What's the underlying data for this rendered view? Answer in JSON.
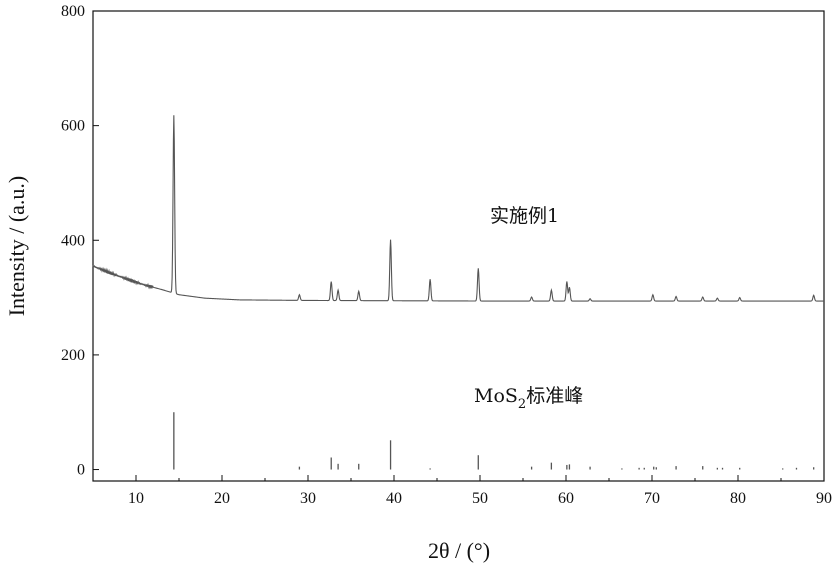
{
  "chart_data": {
    "type": "line",
    "xlabel": "2θ / (°)",
    "ylabel": "Intensity / (a.u.)",
    "xlim": [
      5,
      90
    ],
    "ylim": [
      -20,
      800
    ],
    "x_ticks": [
      10,
      20,
      30,
      40,
      50,
      60,
      70,
      80,
      90
    ],
    "y_ticks": [
      0,
      200,
      400,
      600,
      800
    ],
    "grid": false,
    "annotations": {
      "sample_label": "实施例1",
      "reference_label_prefix": "MoS",
      "reference_label_subscript": "2",
      "reference_label_suffix": "标准峰"
    },
    "series": [
      {
        "type": "line",
        "color": "#555555",
        "baseline": [
          [
            5,
            355
          ],
          [
            7,
            343
          ],
          [
            9,
            332
          ],
          [
            11,
            322
          ],
          [
            13,
            314
          ],
          [
            15,
            305
          ],
          [
            18,
            299
          ],
          [
            22,
            296
          ],
          [
            30,
            295
          ],
          [
            50,
            294
          ],
          [
            70,
            294
          ],
          [
            90,
            294
          ]
        ],
        "peaks": [
          {
            "x": 14.4,
            "y": 618
          },
          {
            "x": 29.0,
            "y": 305
          },
          {
            "x": 32.7,
            "y": 328
          },
          {
            "x": 33.5,
            "y": 313
          },
          {
            "x": 35.9,
            "y": 311
          },
          {
            "x": 39.6,
            "y": 401
          },
          {
            "x": 44.2,
            "y": 332
          },
          {
            "x": 49.8,
            "y": 351
          },
          {
            "x": 56.0,
            "y": 301
          },
          {
            "x": 58.3,
            "y": 313
          },
          {
            "x": 60.1,
            "y": 328
          },
          {
            "x": 60.4,
            "y": 318
          },
          {
            "x": 62.8,
            "y": 298
          },
          {
            "x": 70.1,
            "y": 305
          },
          {
            "x": 72.8,
            "y": 302
          },
          {
            "x": 75.9,
            "y": 301
          },
          {
            "x": 77.6,
            "y": 299
          },
          {
            "x": 80.2,
            "y": 300
          },
          {
            "x": 88.8,
            "y": 304
          }
        ]
      },
      {
        "type": "stick",
        "color": "#555555",
        "sticks": [
          {
            "x": 14.4,
            "y": 100
          },
          {
            "x": 29.0,
            "y": 5
          },
          {
            "x": 32.7,
            "y": 21
          },
          {
            "x": 33.5,
            "y": 10
          },
          {
            "x": 35.9,
            "y": 10
          },
          {
            "x": 39.6,
            "y": 51
          },
          {
            "x": 44.2,
            "y": 2
          },
          {
            "x": 49.8,
            "y": 25
          },
          {
            "x": 56.0,
            "y": 5
          },
          {
            "x": 58.3,
            "y": 12
          },
          {
            "x": 60.1,
            "y": 8
          },
          {
            "x": 60.4,
            "y": 9
          },
          {
            "x": 62.8,
            "y": 5
          },
          {
            "x": 66.5,
            "y": 2
          },
          {
            "x": 68.5,
            "y": 3
          },
          {
            "x": 69.1,
            "y": 3
          },
          {
            "x": 70.2,
            "y": 5
          },
          {
            "x": 70.5,
            "y": 4
          },
          {
            "x": 72.8,
            "y": 6
          },
          {
            "x": 75.9,
            "y": 6
          },
          {
            "x": 77.6,
            "y": 3
          },
          {
            "x": 78.2,
            "y": 3
          },
          {
            "x": 80.2,
            "y": 3
          },
          {
            "x": 85.2,
            "y": 2
          },
          {
            "x": 86.8,
            "y": 3
          },
          {
            "x": 88.8,
            "y": 4
          }
        ]
      }
    ]
  }
}
